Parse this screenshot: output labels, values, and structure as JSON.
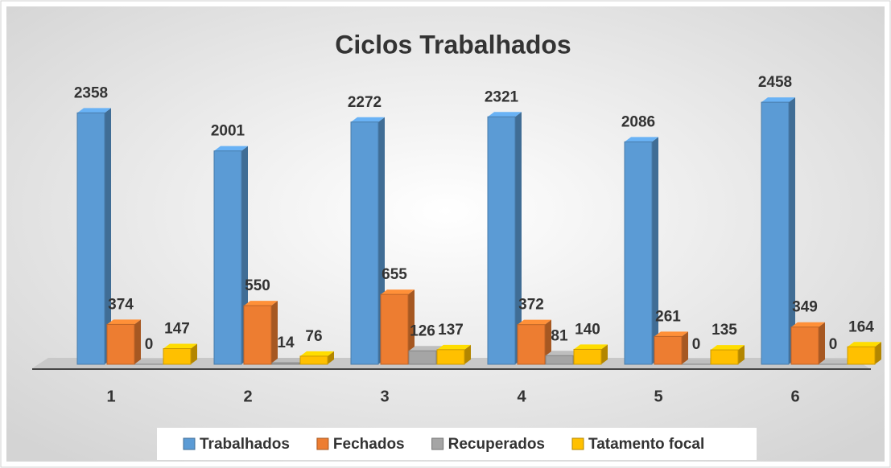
{
  "chart_data": {
    "type": "bar",
    "title": "Ciclos Trabalhados",
    "categories": [
      "1",
      "2",
      "3",
      "4",
      "5",
      "6"
    ],
    "series": [
      {
        "name": "Trabalhados",
        "color": "#5b9bd5",
        "values": [
          2358,
          2001,
          2272,
          2321,
          2086,
          2458
        ]
      },
      {
        "name": "Fechados",
        "color": "#ed7d31",
        "values": [
          374,
          550,
          655,
          372,
          261,
          349
        ]
      },
      {
        "name": "Recuperados",
        "color": "#a5a5a5",
        "values": [
          0,
          14,
          126,
          81,
          0,
          0
        ]
      },
      {
        "name": "Tatamento focal",
        "color": "#ffc000",
        "values": [
          147,
          76,
          137,
          140,
          135,
          164
        ]
      }
    ],
    "ylim": [
      0,
      2700
    ],
    "legend": "bottom"
  }
}
